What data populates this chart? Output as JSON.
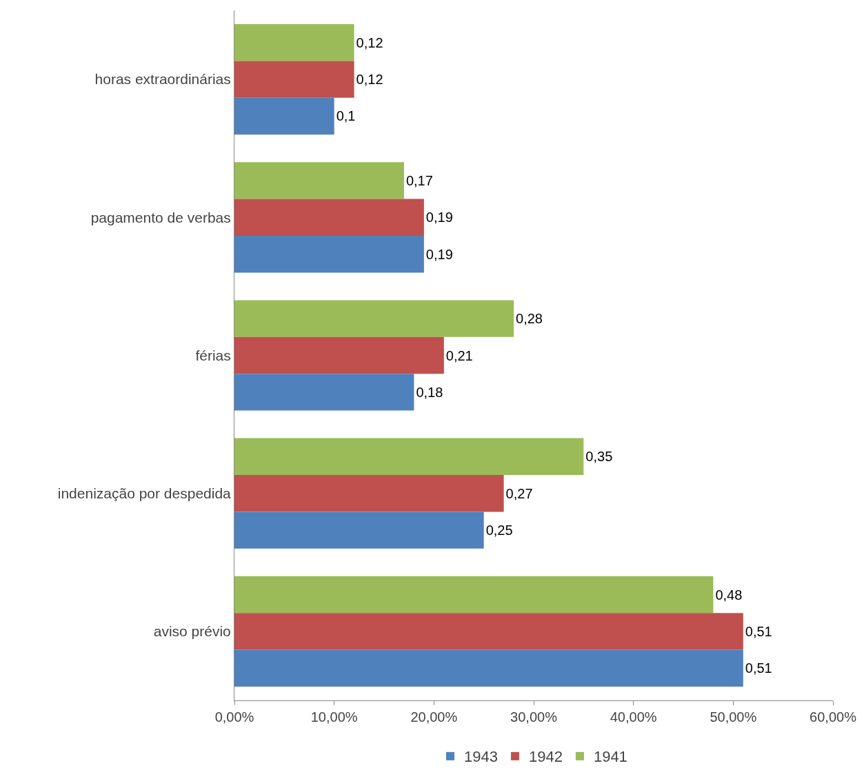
{
  "chart_data": {
    "type": "bar",
    "orientation": "horizontal",
    "categories": [
      "horas extraordinárias",
      "pagamento de verbas",
      "férias",
      "indenização por despedida",
      "aviso prévio"
    ],
    "series": [
      {
        "name": "1941",
        "color": "#9bbb59",
        "values": [
          0.12,
          0.17,
          0.28,
          0.35,
          0.48
        ],
        "value_labels": [
          "0,12",
          "0,17",
          "0,28",
          "0,35",
          "0,48"
        ]
      },
      {
        "name": "1942",
        "color": "#c0504d",
        "values": [
          0.12,
          0.19,
          0.21,
          0.27,
          0.51
        ],
        "value_labels": [
          "0,12",
          "0,19",
          "0,21",
          "0,27",
          "0,51"
        ]
      },
      {
        "name": "1943",
        "color": "#4f81bd",
        "values": [
          0.1,
          0.19,
          0.18,
          0.25,
          0.51
        ],
        "value_labels": [
          "0,1",
          "0,19",
          "0,18",
          "0,25",
          "0,51"
        ]
      }
    ],
    "xlim": [
      0,
      0.6
    ],
    "xticks": [
      {
        "value": 0,
        "label": "0,00%"
      },
      {
        "value": 0.1,
        "label": "10,00%"
      },
      {
        "value": 0.2,
        "label": "20,00%"
      },
      {
        "value": 0.3,
        "label": "30,00%"
      },
      {
        "value": 0.4,
        "label": "40,00%"
      },
      {
        "value": 0.5,
        "label": "50,00%"
      },
      {
        "value": 0.6,
        "label": "60,00%"
      }
    ],
    "grid": false,
    "legend": "bottom"
  }
}
